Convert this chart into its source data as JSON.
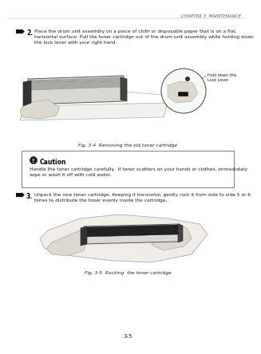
{
  "background_color": "#ffffff",
  "header_text": "CHAPTER 3  MAINTENANCE",
  "header_fontsize": 4.0,
  "header_color": "#555555",
  "page_number": "3-5",
  "page_num_fontsize": 5.0,
  "step2_text": "Place the drum unit assembly on a piece of cloth or disposable paper that is on a flat,\nhorizontal surface. Pull the toner cartridge out of the drum unit assembly while holding down\nthe lock lever with your right hand.",
  "step2_fontsize": 4.2,
  "step2_text_color": "#222222",
  "callout_text": "Hold down this\nLock Lever.",
  "callout_fontsize": 3.5,
  "fig1_caption": "Fig. 3-4  Removing the old toner cartridge",
  "fig1_caption_fontsize": 4.2,
  "fig1_caption_style": "italic",
  "caution_title": "Caution",
  "caution_title_fontsize": 5.5,
  "caution_body": "Handle the toner cartridge carefully.  If toner scatters on your hands or clothes, immediately\nwipe or wash it off with cold water.",
  "caution_body_fontsize": 4.2,
  "caution_box_color": "#ffffff",
  "caution_box_edge": "#888888",
  "step3_text": "Unpack the new toner cartridge. Keeping it horizontal, gently rock it from side to side 5 or 6\ntimes to distribute the toner evenly inside the cartridge.",
  "step3_fontsize": 4.2,
  "step3_text_color": "#222222",
  "fig2_caption": "Fig. 3-5  Rocking  the toner cartridge",
  "fig2_caption_fontsize": 4.2,
  "fig2_caption_style": "italic",
  "text_color": "#222222",
  "line_color": "#555555"
}
